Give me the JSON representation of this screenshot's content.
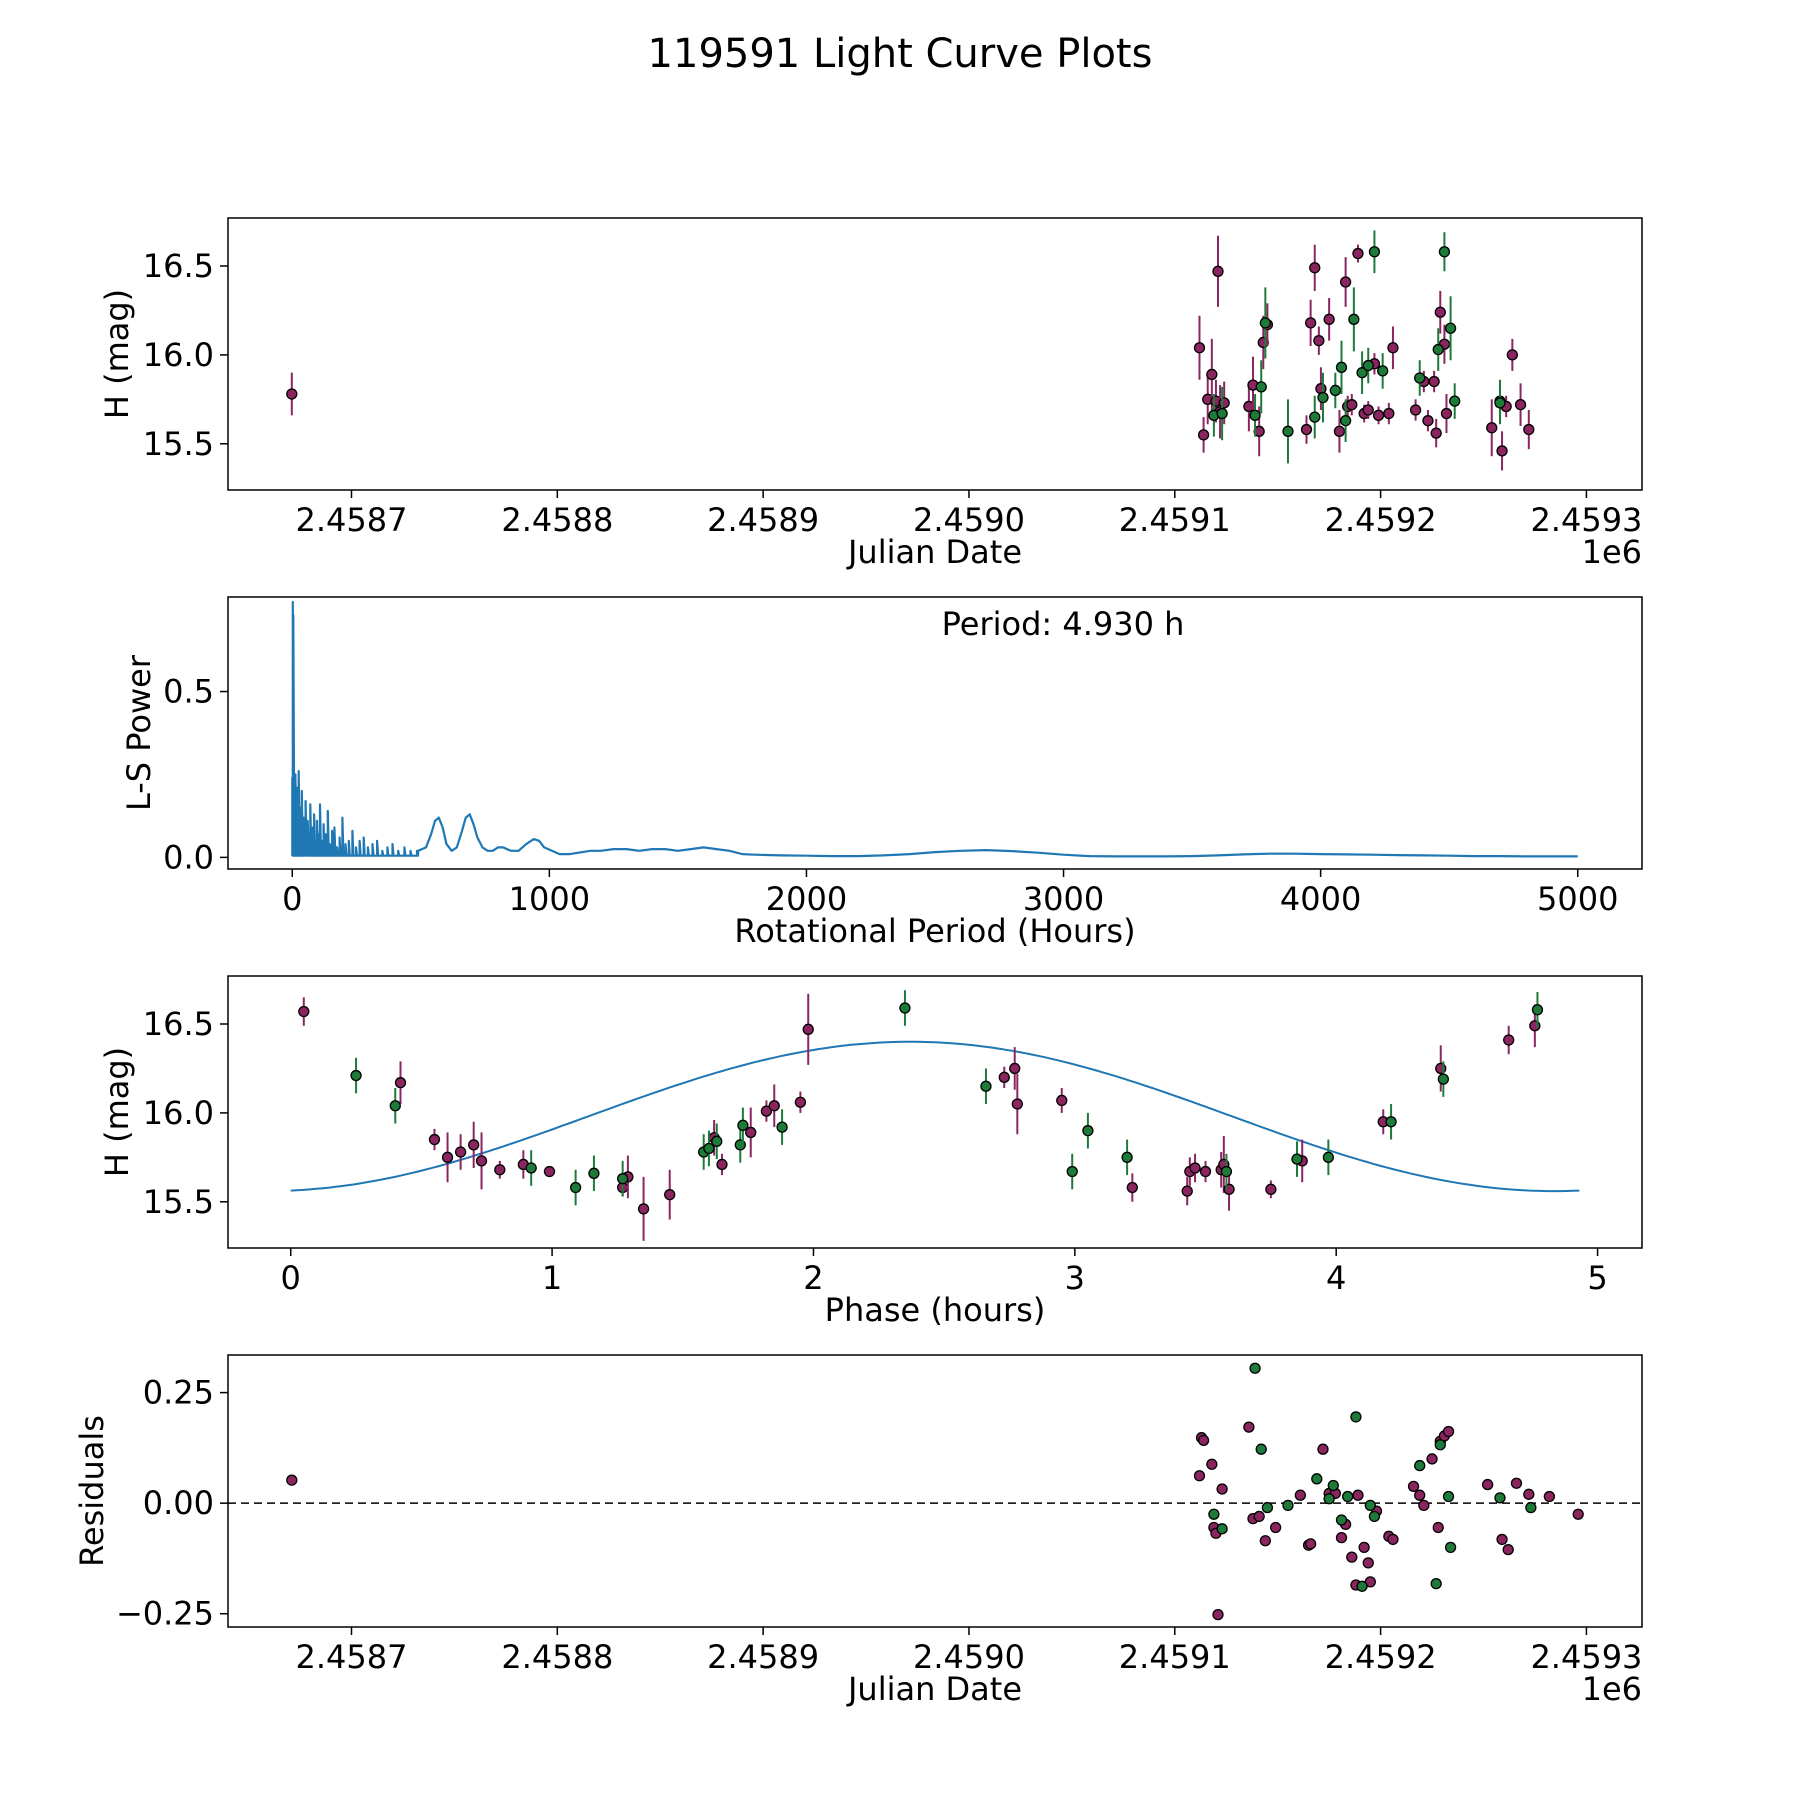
{
  "figure_title": "119591 Light Curve Plots",
  "colors": {
    "purple": "#8b2560",
    "green": "#1e7a38",
    "line": "#1f77b4",
    "edge": "#000000"
  },
  "chart_data": [
    {
      "id": "jd",
      "type": "scatter",
      "title": "",
      "xlabel": "Julian Date",
      "ylabel": "H (mag)",
      "offset_text": "1e6",
      "xlim": [
        2.45864,
        2.459327
      ],
      "ylim": [
        15.24,
        16.77
      ],
      "xticks": [
        2.4587,
        2.4588,
        2.4589,
        2.459,
        2.4591,
        2.4592,
        2.4593
      ],
      "xtick_labels": [
        "2.4587",
        "2.4588",
        "2.4589",
        "2.4590",
        "2.4591",
        "2.4592",
        "2.4593"
      ],
      "yticks": [
        15.5,
        16.0,
        16.5
      ],
      "ytick_labels": [
        "15.5",
        "16.0",
        "16.5"
      ],
      "series": [
        {
          "name": "purple",
          "x": [
            2.458671,
            2.459112,
            2.459114,
            2.459116,
            2.459118,
            2.45912,
            2.459121,
            2.459122,
            2.459124,
            2.459136,
            2.459138,
            2.459141,
            2.459143,
            2.459145,
            2.459164,
            2.459166,
            2.459168,
            2.45917,
            2.459171,
            2.459175,
            2.45918,
            2.459183,
            2.459184,
            2.459186,
            2.459189,
            2.459192,
            2.459194,
            2.459197,
            2.459199,
            2.459204,
            2.459206,
            2.459217,
            2.459221,
            2.459223,
            2.459226,
            2.459227,
            2.459229,
            2.459231,
            2.459232,
            2.459254,
            2.459259,
            2.459261,
            2.459264,
            2.459268,
            2.459272
          ],
          "y": [
            15.78,
            16.04,
            15.55,
            15.75,
            15.89,
            15.74,
            16.47,
            15.68,
            15.73,
            15.71,
            15.83,
            15.57,
            16.07,
            16.17,
            15.58,
            16.18,
            16.49,
            16.08,
            15.81,
            16.2,
            15.57,
            16.41,
            15.71,
            15.72,
            16.57,
            15.67,
            15.69,
            15.95,
            15.66,
            15.67,
            16.04,
            15.69,
            15.85,
            15.63,
            15.85,
            15.56,
            16.24,
            16.06,
            15.67,
            15.59,
            15.46,
            15.71,
            16.0,
            15.72,
            15.58
          ],
          "err": [
            0.12,
            0.18,
            0.1,
            0.14,
            0.2,
            0.12,
            0.2,
            0.15,
            0.12,
            0.14,
            0.16,
            0.14,
            0.15,
            0.12,
            0.08,
            0.13,
            0.13,
            0.08,
            0.12,
            0.12,
            0.12,
            0.14,
            0.06,
            0.06,
            0.05,
            0.05,
            0.05,
            0.06,
            0.05,
            0.06,
            0.12,
            0.06,
            0.06,
            0.06,
            0.06,
            0.08,
            0.12,
            0.11,
            0.11,
            0.16,
            0.11,
            0.06,
            0.09,
            0.12,
            0.11
          ]
        },
        {
          "name": "green",
          "x": [
            2.459119,
            2.459123,
            2.459139,
            2.459142,
            2.459144,
            2.459155,
            2.459168,
            2.459172,
            2.459178,
            2.459181,
            2.459183,
            2.459187,
            2.459191,
            2.459194,
            2.459197,
            2.459201,
            2.459219,
            2.459228,
            2.459231,
            2.459234,
            2.459236,
            2.459258,
            2.459258
          ],
          "y": [
            15.66,
            15.67,
            15.66,
            15.82,
            16.18,
            15.57,
            15.65,
            15.76,
            15.8,
            15.93,
            15.63,
            16.2,
            15.9,
            15.94,
            16.58,
            15.91,
            15.87,
            16.03,
            16.58,
            16.15,
            15.74,
            15.74,
            15.73
          ],
          "err": [
            0.12,
            0.15,
            0.12,
            0.15,
            0.2,
            0.18,
            0.12,
            0.14,
            0.1,
            0.15,
            0.12,
            0.18,
            0.12,
            0.1,
            0.12,
            0.1,
            0.1,
            0.12,
            0.11,
            0.18,
            0.1,
            0.12,
            0.12
          ]
        }
      ]
    },
    {
      "id": "periodogram",
      "type": "line",
      "xlabel": "Rotational Period (Hours)",
      "ylabel": "L-S Power",
      "annotation": "Period: 4.930 h",
      "xlim": [
        -250,
        5250
      ],
      "ylim": [
        -0.035,
        0.785
      ],
      "xticks": [
        0,
        1000,
        2000,
        3000,
        4000,
        5000
      ],
      "xtick_labels": [
        "0",
        "1000",
        "2000",
        "3000",
        "4000",
        "5000"
      ],
      "yticks": [
        0.0,
        0.5
      ],
      "ytick_labels": [
        "0.0",
        "0.5"
      ],
      "spike_x": [
        0,
        2,
        4,
        6,
        8,
        10,
        12,
        14,
        16,
        18,
        20,
        22,
        25,
        28,
        31,
        34,
        37,
        40,
        44,
        48,
        52,
        56,
        60,
        65,
        70,
        75,
        80,
        85,
        90,
        96,
        102,
        108,
        115,
        122,
        130,
        138,
        146,
        155,
        164,
        174,
        184,
        195,
        207,
        220,
        234,
        248,
        262,
        278,
        294,
        312,
        330,
        350,
        370,
        390,
        412,
        436,
        460,
        485
      ],
      "spike_y": [
        0.24,
        0.77,
        0.73,
        0.22,
        0.12,
        0.08,
        0.25,
        0.05,
        0.13,
        0.21,
        0.02,
        0.09,
        0.26,
        0.03,
        0.15,
        0.07,
        0.2,
        0.04,
        0.12,
        0.08,
        0.17,
        0.03,
        0.11,
        0.06,
        0.16,
        0.04,
        0.09,
        0.13,
        0.03,
        0.11,
        0.07,
        0.16,
        0.05,
        0.1,
        0.07,
        0.14,
        0.04,
        0.08,
        0.09,
        0.03,
        0.06,
        0.12,
        0.04,
        0.05,
        0.08,
        0.03,
        0.05,
        0.06,
        0.03,
        0.04,
        0.05,
        0.02,
        0.03,
        0.04,
        0.02,
        0.03,
        0.02,
        0.02
      ],
      "smooth_x": [
        490,
        520,
        540,
        555,
        570,
        585,
        600,
        620,
        640,
        660,
        675,
        690,
        705,
        720,
        740,
        760,
        780,
        800,
        820,
        850,
        880,
        910,
        940,
        960,
        980,
        1010,
        1040,
        1080,
        1120,
        1160,
        1200,
        1250,
        1300,
        1350,
        1400,
        1450,
        1500,
        1550,
        1600,
        1650,
        1700,
        1750,
        1800,
        1900,
        2000,
        2100,
        2200,
        2300,
        2400,
        2500,
        2600,
        2700,
        2800,
        2900,
        3000,
        3100,
        3200,
        3300,
        3400,
        3500,
        3600,
        3700,
        3800,
        3900,
        4000,
        4100,
        4200,
        4300,
        4400,
        4500,
        4600,
        4700,
        4800,
        4900,
        5000
      ],
      "smooth_y": [
        0.02,
        0.03,
        0.07,
        0.11,
        0.12,
        0.09,
        0.04,
        0.02,
        0.03,
        0.08,
        0.12,
        0.13,
        0.1,
        0.06,
        0.03,
        0.02,
        0.02,
        0.03,
        0.03,
        0.02,
        0.02,
        0.04,
        0.055,
        0.05,
        0.03,
        0.02,
        0.01,
        0.01,
        0.015,
        0.02,
        0.02,
        0.025,
        0.025,
        0.02,
        0.025,
        0.025,
        0.02,
        0.025,
        0.03,
        0.025,
        0.02,
        0.01,
        0.008,
        0.006,
        0.005,
        0.004,
        0.004,
        0.006,
        0.01,
        0.016,
        0.02,
        0.022,
        0.019,
        0.014,
        0.008,
        0.004,
        0.003,
        0.003,
        0.003,
        0.004,
        0.006,
        0.009,
        0.011,
        0.011,
        0.01,
        0.009,
        0.008,
        0.007,
        0.006,
        0.005,
        0.004,
        0.004,
        0.003,
        0.003,
        0.003
      ]
    },
    {
      "id": "phase",
      "type": "scatter",
      "xlabel": "Phase (hours)",
      "ylabel": "H (mag)",
      "xlim": [
        -0.24,
        5.17
      ],
      "ylim": [
        15.24,
        16.77
      ],
      "xticks": [
        0,
        1,
        2,
        3,
        4,
        5
      ],
      "xtick_labels": [
        "0",
        "1",
        "2",
        "3",
        "4",
        "5"
      ],
      "yticks": [
        15.5,
        16.0,
        16.5
      ],
      "ytick_labels": [
        "15.5",
        "16.0",
        "16.5"
      ],
      "fit": {
        "mean": 15.98,
        "amplitude": 0.42,
        "period": 4.93,
        "phase_of_peak": 2.37,
        "x_range": [
          0,
          4.93
        ]
      },
      "series": [
        {
          "name": "purple",
          "x": [
            0.05,
            0.42,
            0.55,
            0.6,
            0.65,
            0.7,
            0.73,
            0.8,
            0.89,
            0.99,
            1.27,
            1.29,
            1.35,
            1.45,
            1.62,
            1.65,
            1.76,
            1.82,
            1.85,
            1.95,
            1.98,
            2.73,
            2.77,
            2.78,
            2.95,
            3.22,
            3.43,
            3.44,
            3.46,
            3.5,
            3.56,
            3.57,
            3.59,
            3.75,
            3.87,
            4.18,
            4.4,
            4.66,
            4.76
          ],
          "y": [
            16.57,
            16.17,
            15.85,
            15.75,
            15.78,
            15.82,
            15.73,
            15.68,
            15.71,
            15.67,
            15.58,
            15.64,
            15.46,
            15.54,
            15.86,
            15.71,
            15.89,
            16.01,
            16.04,
            16.06,
            16.47,
            16.2,
            16.25,
            16.05,
            16.07,
            15.58,
            15.56,
            15.67,
            15.69,
            15.67,
            15.68,
            15.71,
            15.57,
            15.57,
            15.73,
            15.95,
            16.25,
            16.41,
            16.49
          ],
          "err": [
            0.08,
            0.12,
            0.06,
            0.14,
            0.1,
            0.13,
            0.16,
            0.05,
            0.08,
            0.03,
            0.05,
            0.12,
            0.18,
            0.14,
            0.1,
            0.06,
            0.14,
            0.06,
            0.12,
            0.06,
            0.2,
            0.06,
            0.12,
            0.17,
            0.07,
            0.08,
            0.08,
            0.08,
            0.08,
            0.06,
            0.1,
            0.16,
            0.12,
            0.05,
            0.12,
            0.07,
            0.13,
            0.08,
            0.12
          ]
        },
        {
          "name": "green",
          "x": [
            0.25,
            0.4,
            0.92,
            1.09,
            1.16,
            1.27,
            1.58,
            1.6,
            1.63,
            1.72,
            1.73,
            1.88,
            2.35,
            2.66,
            2.99,
            3.05,
            3.2,
            3.58,
            3.85,
            3.97,
            4.21,
            4.41,
            4.77
          ],
          "y": [
            16.21,
            16.04,
            15.69,
            15.58,
            15.66,
            15.63,
            15.78,
            15.8,
            15.84,
            15.82,
            15.93,
            15.92,
            16.59,
            16.15,
            15.67,
            15.9,
            15.75,
            15.67,
            15.74,
            15.75,
            15.95,
            16.19,
            16.58
          ]
        }
      ]
    },
    {
      "id": "residuals",
      "type": "scatter",
      "xlabel": "Julian Date",
      "ylabel": "Residuals",
      "offset_text": "1e6",
      "xlim": [
        2.45864,
        2.459327
      ],
      "ylim": [
        -0.28,
        0.335
      ],
      "xticks": [
        2.4587,
        2.4588,
        2.4589,
        2.459,
        2.4591,
        2.4592,
        2.4593
      ],
      "xtick_labels": [
        "2.4587",
        "2.4588",
        "2.4589",
        "2.4590",
        "2.4591",
        "2.4592",
        "2.4593"
      ],
      "yticks": [
        -0.25,
        0.0,
        0.25
      ],
      "ytick_labels": [
        "−0.25",
        "0.00",
        "0.25"
      ],
      "zero_line": true,
      "series": [
        {
          "name": "purple",
          "x": [
            2.458671,
            2.459112,
            2.459113,
            2.459114,
            2.459118,
            2.459119,
            2.45912,
            2.459121,
            2.459123,
            2.459136,
            2.459138,
            2.459141,
            2.459144,
            2.459149,
            2.459161,
            2.459165,
            2.459166,
            2.459172,
            2.459175,
            2.459178,
            2.459181,
            2.459183,
            2.459186,
            2.459188,
            2.459189,
            2.459192,
            2.459194,
            2.459195,
            2.459198,
            2.459204,
            2.459206,
            2.459216,
            2.459219,
            2.459221,
            2.459225,
            2.459228,
            2.459229,
            2.459231,
            2.459233,
            2.459252,
            2.459259,
            2.459262,
            2.459266,
            2.459272,
            2.459282,
            2.459296
          ],
          "y": [
            0.052,
            0.062,
            0.148,
            0.142,
            0.088,
            -0.055,
            -0.068,
            -0.252,
            0.032,
            0.172,
            -0.035,
            -0.03,
            -0.085,
            -0.055,
            0.018,
            -0.095,
            -0.092,
            0.122,
            0.022,
            0.022,
            -0.078,
            -0.048,
            -0.122,
            -0.185,
            0.018,
            -0.1,
            -0.135,
            -0.178,
            -0.018,
            -0.075,
            -0.082,
            0.038,
            0.018,
            -0.005,
            0.1,
            -0.055,
            0.14,
            0.152,
            0.162,
            0.042,
            -0.082,
            -0.105,
            0.045,
            0.02,
            0.015,
            -0.025
          ]
        },
        {
          "name": "green",
          "x": [
            2.459119,
            2.459123,
            2.459139,
            2.459142,
            2.459145,
            2.459155,
            2.459169,
            2.459175,
            2.459177,
            2.459181,
            2.459184,
            2.459188,
            2.459191,
            2.459195,
            2.459197,
            2.459219,
            2.459227,
            2.459229,
            2.459233,
            2.459234,
            2.459258,
            2.459273
          ],
          "y": [
            -0.025,
            -0.058,
            0.305,
            0.122,
            -0.01,
            -0.005,
            0.055,
            0.01,
            0.04,
            -0.038,
            0.015,
            0.195,
            -0.188,
            -0.005,
            -0.03,
            0.085,
            -0.182,
            0.132,
            0.015,
            -0.1,
            0.012,
            -0.01
          ]
        }
      ]
    }
  ]
}
